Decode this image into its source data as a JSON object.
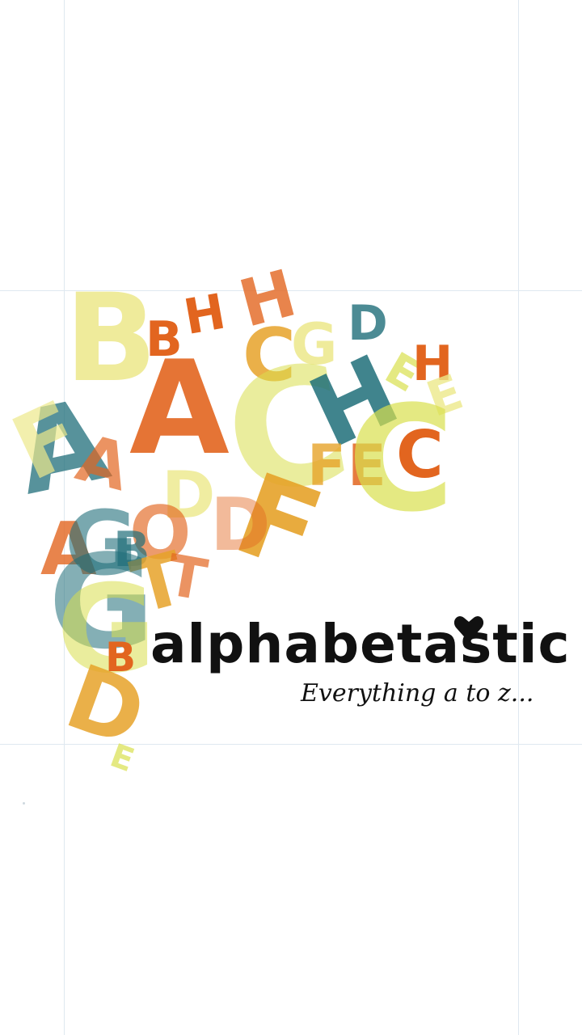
{
  "app": {
    "name": "alphabetastic",
    "tagline": "Everything a to z..."
  },
  "colors": {
    "orange": "#e2651f",
    "amber": "#e6a229",
    "pale_yellow": "#ece88a",
    "yellow_green": "#d9df4d",
    "teal": "#1f6e79",
    "text": "#111111",
    "background": "#ffffff"
  },
  "decor": {
    "icon": "heart-icon"
  }
}
